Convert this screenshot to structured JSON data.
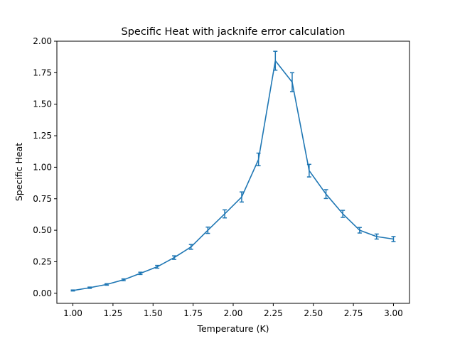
{
  "chart_data": {
    "type": "line",
    "title": "Specific Heat with jacknife error calculation",
    "xlabel": "Temperature (K)",
    "ylabel": "Specific Heat",
    "xlim": [
      0.9,
      3.1
    ],
    "ylim": [
      -0.08,
      2.0
    ],
    "x_ticks": [
      1.0,
      1.25,
      1.5,
      1.75,
      2.0,
      2.25,
      2.5,
      2.75,
      3.0
    ],
    "x_tick_labels": [
      "1.00",
      "1.25",
      "1.50",
      "1.75",
      "2.00",
      "2.25",
      "2.50",
      "2.75",
      "3.00"
    ],
    "y_ticks": [
      0.0,
      0.25,
      0.5,
      0.75,
      1.0,
      1.25,
      1.5,
      1.75,
      2.0
    ],
    "y_tick_labels": [
      "0.00",
      "0.25",
      "0.50",
      "0.75",
      "1.00",
      "1.25",
      "1.50",
      "1.75",
      "2.00"
    ],
    "grid": false,
    "color": "#1f77b4",
    "series": [
      {
        "x": [
          1.0,
          1.105,
          1.211,
          1.316,
          1.421,
          1.526,
          1.632,
          1.737,
          1.842,
          1.947,
          2.053,
          2.158,
          2.263,
          2.368,
          2.474,
          2.579,
          2.684,
          2.789,
          2.895,
          3.0
        ],
        "y": [
          0.022,
          0.044,
          0.07,
          0.107,
          0.158,
          0.21,
          0.283,
          0.368,
          0.5,
          0.63,
          0.764,
          1.062,
          1.845,
          1.675,
          0.973,
          0.787,
          0.63,
          0.5,
          0.45,
          0.43
        ],
        "yerr": [
          0.004,
          0.005,
          0.006,
          0.007,
          0.009,
          0.011,
          0.014,
          0.019,
          0.025,
          0.032,
          0.04,
          0.05,
          0.075,
          0.075,
          0.05,
          0.035,
          0.028,
          0.022,
          0.02,
          0.02
        ]
      }
    ]
  }
}
